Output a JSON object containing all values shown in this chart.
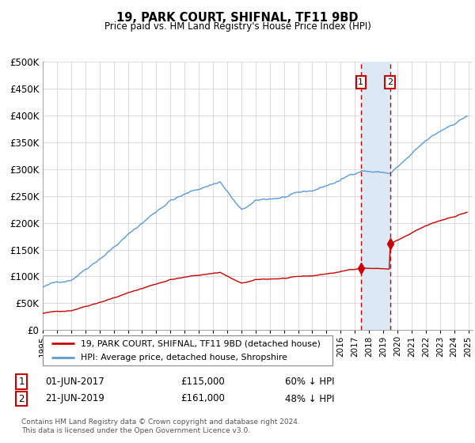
{
  "title": "19, PARK COURT, SHIFNAL, TF11 9BD",
  "subtitle": "Price paid vs. HM Land Registry's House Price Index (HPI)",
  "footer": "Contains HM Land Registry data © Crown copyright and database right 2024.\nThis data is licensed under the Open Government Licence v3.0.",
  "legend_line1": "19, PARK COURT, SHIFNAL, TF11 9BD (detached house)",
  "legend_line2": "HPI: Average price, detached house, Shropshire",
  "transaction1_label": "01-JUN-2017",
  "transaction1_price": "£115,000",
  "transaction1_note": "60% ↓ HPI",
  "transaction2_label": "21-JUN-2019",
  "transaction2_price": "£161,000",
  "transaction2_note": "48% ↓ HPI",
  "hpi_color": "#5b9bd5",
  "price_color": "#cc0000",
  "vline_color": "#cc0000",
  "highlight_color": "#dce9f5",
  "grid_color": "#cccccc",
  "ylim": [
    0,
    500000
  ],
  "yticks": [
    0,
    50000,
    100000,
    150000,
    200000,
    250000,
    300000,
    350000,
    400000,
    450000,
    500000
  ],
  "x_start_year": 1995,
  "x_end_year": 2025,
  "transaction1_year": 2017.42,
  "transaction2_year": 2019.47,
  "transaction1_price_val": 115000,
  "transaction2_price_val": 161000
}
